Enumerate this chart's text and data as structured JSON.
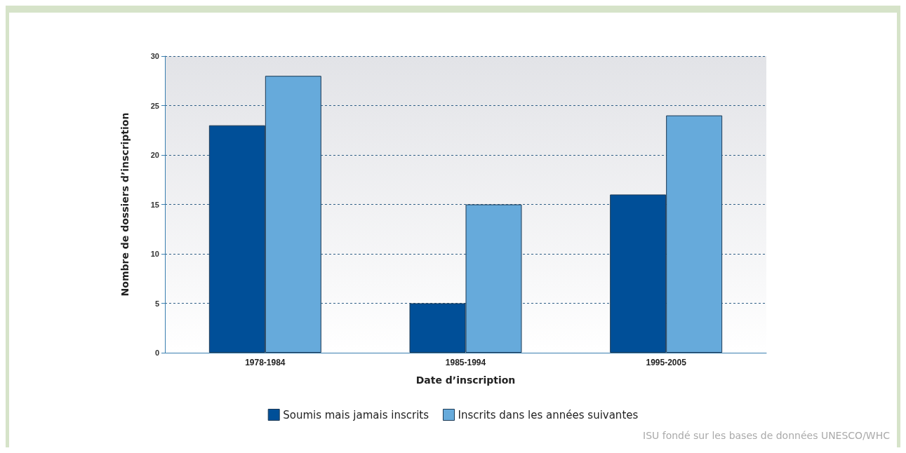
{
  "chart_data": {
    "type": "bar",
    "xlabel": "Date d’inscription",
    "ylabel": "Nombre de dossiers d’inscription",
    "categories": [
      "1978-1984",
      "1985-1994",
      "1995-2005"
    ],
    "series": [
      {
        "name": "Soumis mais jamais inscrits",
        "color": "#004f98",
        "values": [
          23,
          5,
          16
        ]
      },
      {
        "name": "Inscrits dans les années suivantes",
        "color": "#66aadb",
        "values": [
          28,
          15,
          24
        ]
      }
    ],
    "ylim": [
      0,
      30
    ],
    "yticks": [
      0,
      5,
      10,
      15,
      20,
      25,
      30
    ],
    "grid": "y",
    "legend": "bottom",
    "annotations": [
      "ISU fondé sur les bases de données UNESCO/WHC"
    ]
  }
}
